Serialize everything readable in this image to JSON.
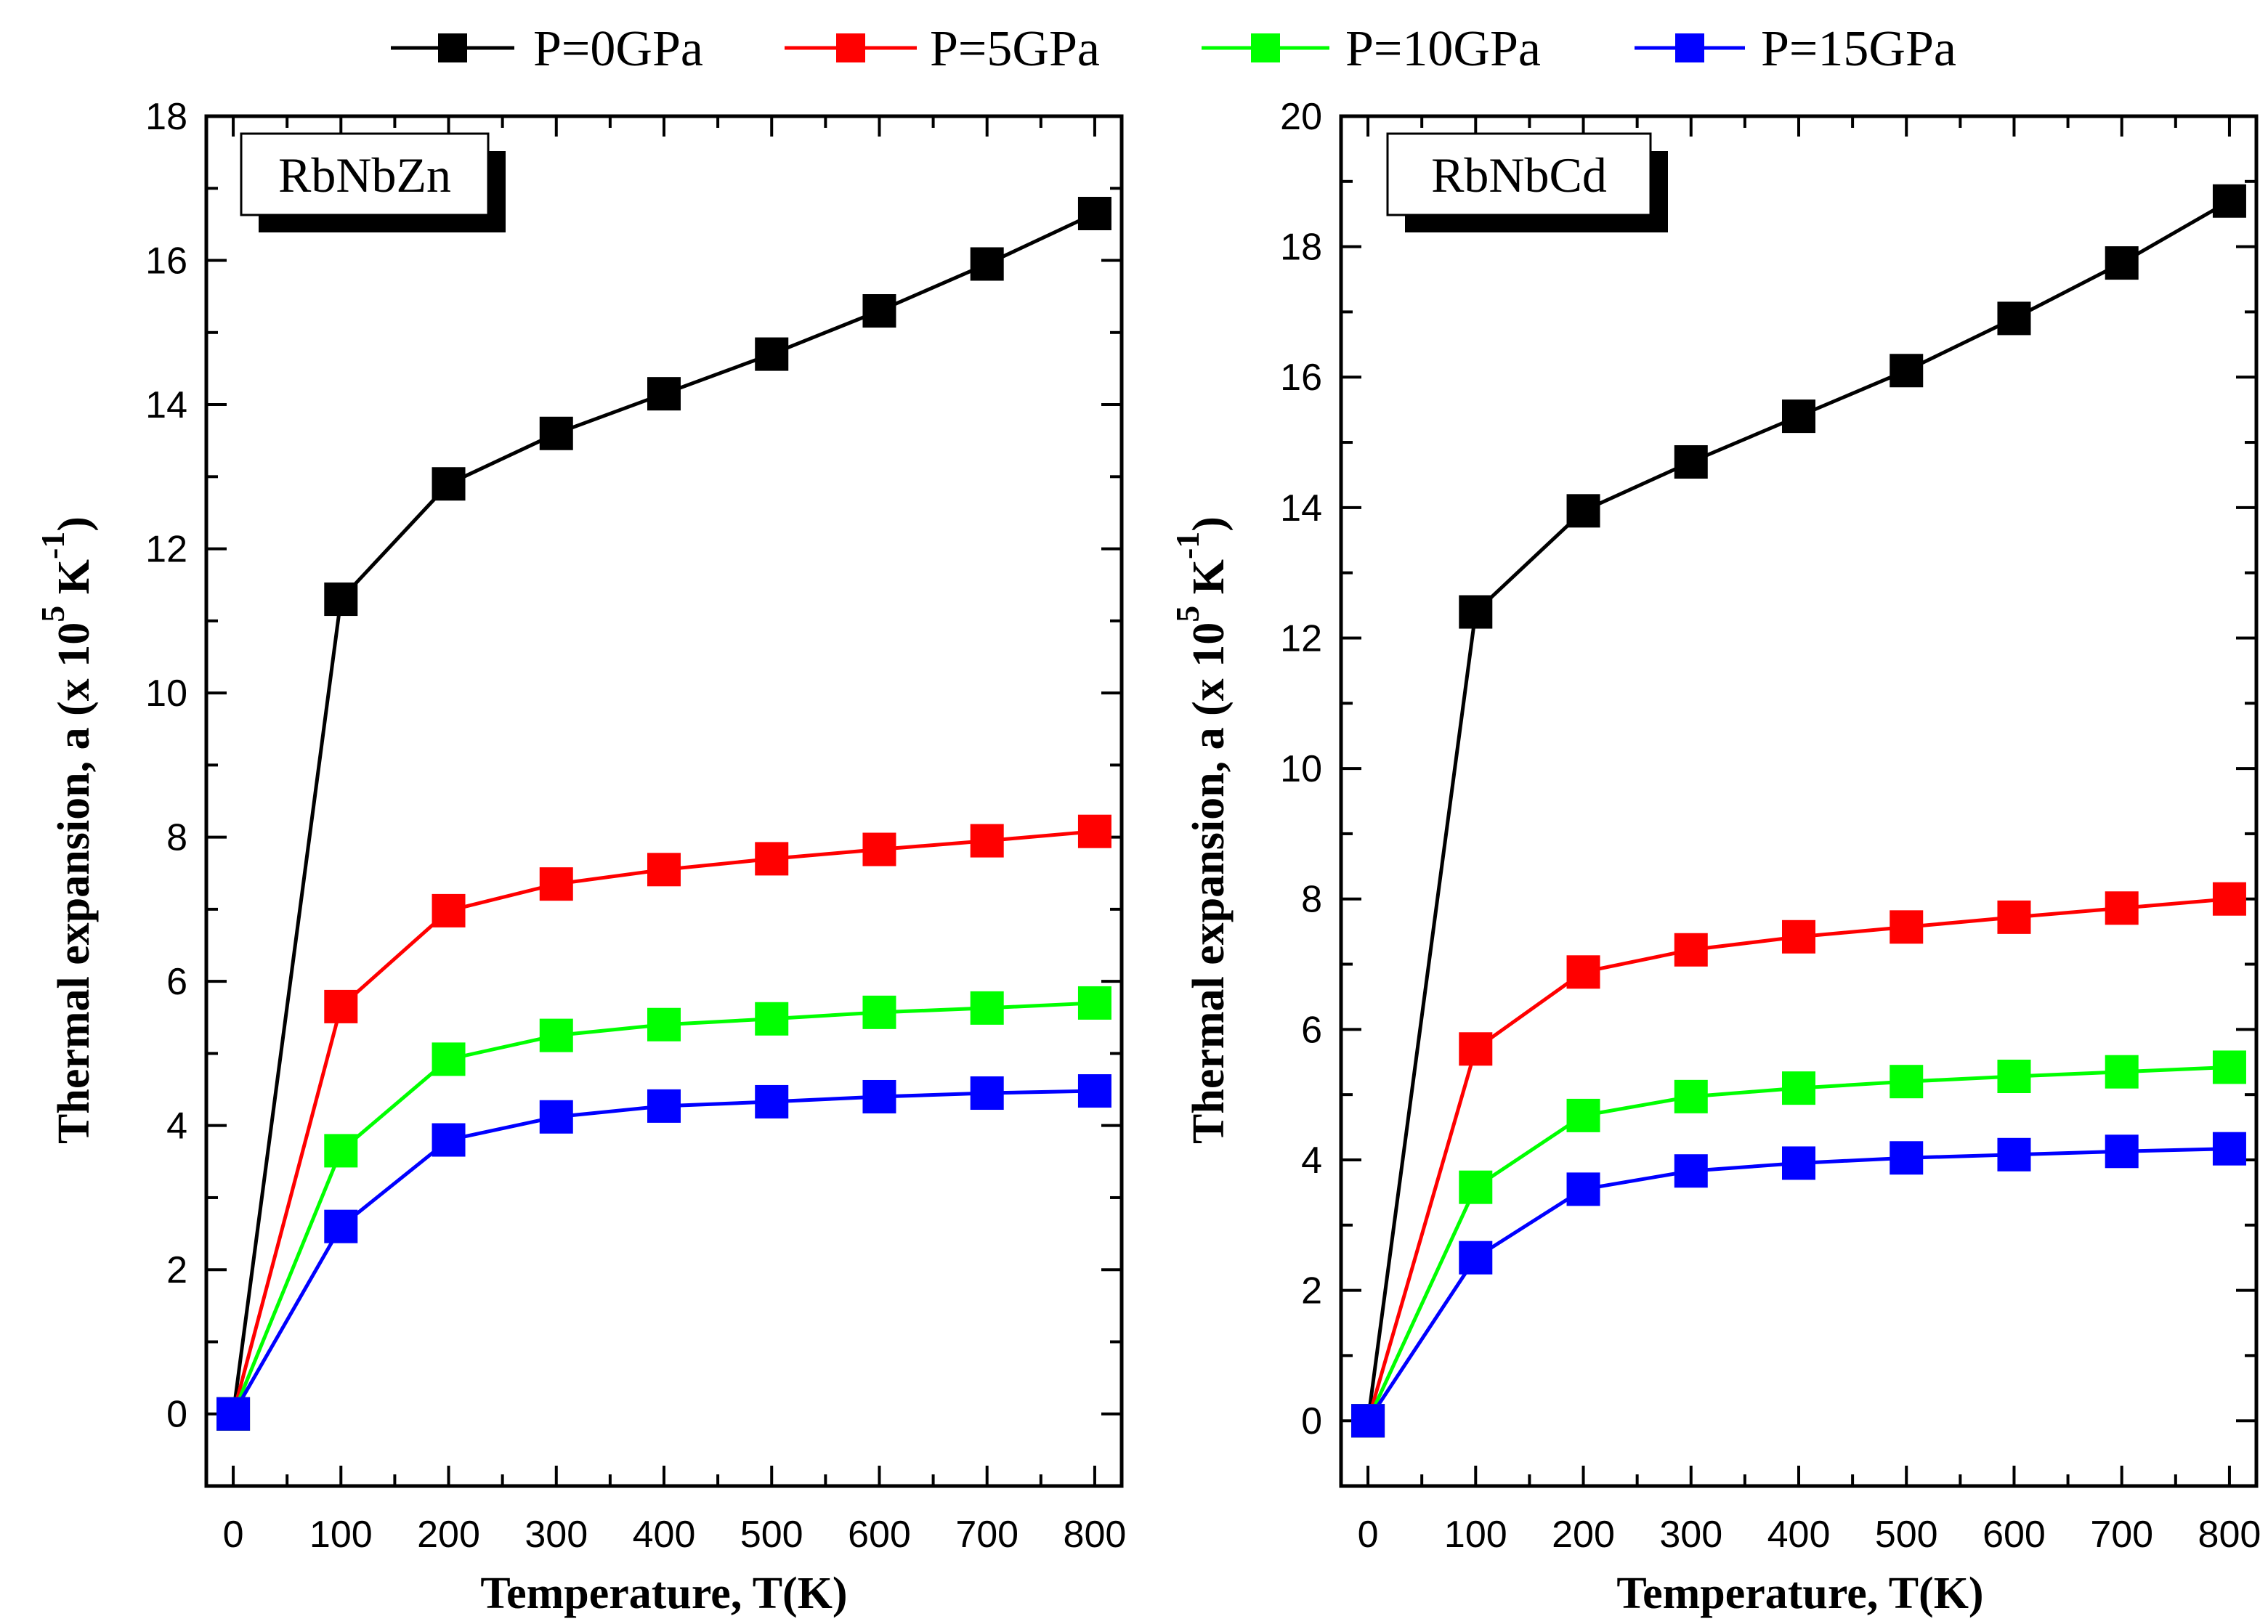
{
  "chart_data": [
    {
      "type": "line",
      "title": "RbNbZn",
      "xlabel": "Temperature, T(K)",
      "ylabel": "Thermal expansion, a (x 10^5 K^-1)",
      "ylabel_parts": {
        "main": "Thermal expansion, a (x 10",
        "exp5": "5",
        "unit": " K",
        "expneg1": "-1",
        "close": ")"
      },
      "x": [
        0,
        100,
        200,
        300,
        400,
        500,
        600,
        700,
        800
      ],
      "xlim": [
        -25,
        825
      ],
      "ylim": [
        -1,
        18
      ],
      "xticks": [
        0,
        100,
        200,
        300,
        400,
        500,
        600,
        700,
        800
      ],
      "yticks": [
        0,
        2,
        4,
        6,
        8,
        10,
        12,
        14,
        16,
        18
      ],
      "series": [
        {
          "name": "P=0GPa",
          "color": "#000000",
          "values": [
            0,
            11.3,
            12.9,
            13.6,
            14.15,
            14.7,
            15.3,
            15.95,
            16.65
          ]
        },
        {
          "name": "P=5GPa",
          "color": "#ff0000",
          "values": [
            0,
            5.65,
            6.98,
            7.35,
            7.55,
            7.7,
            7.83,
            7.95,
            8.08
          ]
        },
        {
          "name": "P=10GPa",
          "color": "#00ff00",
          "values": [
            0,
            3.65,
            4.92,
            5.25,
            5.4,
            5.48,
            5.57,
            5.63,
            5.7
          ]
        },
        {
          "name": "P=15GPa",
          "color": "#0000ff",
          "values": [
            0,
            2.6,
            3.8,
            4.12,
            4.27,
            4.33,
            4.4,
            4.45,
            4.48
          ]
        }
      ]
    },
    {
      "type": "line",
      "title": "RbNbCd",
      "xlabel": "Temperature, T(K)",
      "ylabel": "Thermal expansion, a (x 10^5 K^-1)",
      "ylabel_parts": {
        "main": "Thermal expansion, a (x 10",
        "exp5": "5",
        "unit": " K",
        "expneg1": "-1",
        "close": ")"
      },
      "x": [
        0,
        100,
        200,
        300,
        400,
        500,
        600,
        700,
        800
      ],
      "xlim": [
        -25,
        825
      ],
      "ylim": [
        -1,
        20
      ],
      "xticks": [
        0,
        100,
        200,
        300,
        400,
        500,
        600,
        700,
        800
      ],
      "yticks": [
        0,
        2,
        4,
        6,
        8,
        10,
        12,
        14,
        16,
        18,
        20
      ],
      "series": [
        {
          "name": "P=0GPa",
          "color": "#000000",
          "values": [
            0,
            12.4,
            13.95,
            14.7,
            15.4,
            16.1,
            16.9,
            17.75,
            18.7
          ]
        },
        {
          "name": "P=5GPa",
          "color": "#ff0000",
          "values": [
            0,
            5.7,
            6.88,
            7.22,
            7.42,
            7.57,
            7.72,
            7.86,
            8.0
          ]
        },
        {
          "name": "P=10GPa",
          "color": "#00ff00",
          "values": [
            0,
            3.58,
            4.68,
            4.97,
            5.1,
            5.2,
            5.28,
            5.35,
            5.42
          ]
        },
        {
          "name": "P=15GPa",
          "color": "#0000ff",
          "values": [
            0,
            2.5,
            3.55,
            3.83,
            3.95,
            4.03,
            4.08,
            4.13,
            4.17
          ]
        }
      ]
    }
  ],
  "legend": [
    {
      "label": "P=0GPa",
      "color": "#000000"
    },
    {
      "label": "P=5GPa",
      "color": "#ff0000"
    },
    {
      "label": "P=10GPa",
      "color": "#00ff00"
    },
    {
      "label": "P=15GPa",
      "color": "#0000ff"
    }
  ]
}
